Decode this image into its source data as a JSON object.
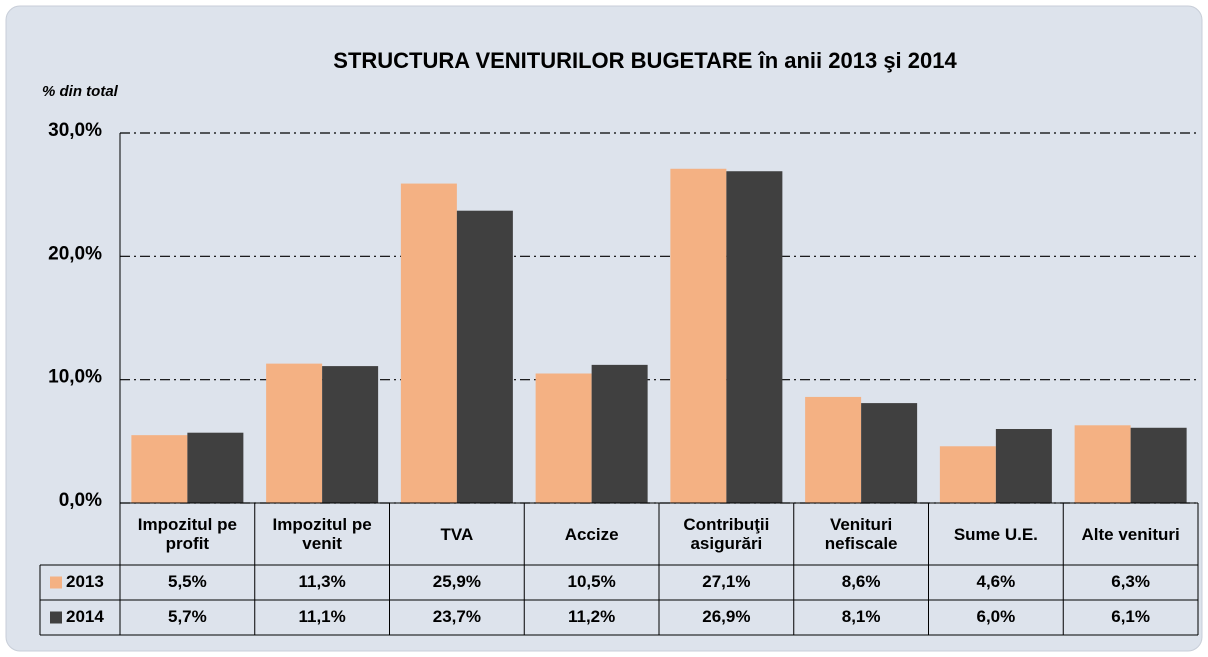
{
  "chart_data": {
    "type": "bar",
    "title": "STRUCTURA VENITURILOR BUGETARE în anii 2013 şi 2014",
    "y_axis_label": "% din total",
    "categories": [
      "Impozitul pe profit",
      "Impozitul pe venit",
      "TVA",
      "Accize",
      "Contribuţii asigurări",
      "Venituri nefiscale",
      "Sume U.E.",
      "Alte venituri"
    ],
    "series": [
      {
        "name": "2013",
        "color": "#f4b183",
        "values": [
          5.5,
          11.3,
          25.9,
          10.5,
          27.1,
          8.6,
          4.6,
          6.3
        ],
        "value_labels": [
          "5,5%",
          "11,3%",
          "25,9%",
          "10,5%",
          "27,1%",
          "8,6%",
          "4,6%",
          "6,3%"
        ]
      },
      {
        "name": "2014",
        "color": "#404040",
        "values": [
          5.7,
          11.1,
          23.7,
          11.2,
          26.9,
          8.1,
          6.0,
          6.1
        ],
        "value_labels": [
          "5,7%",
          "11,1%",
          "23,7%",
          "11,2%",
          "26,9%",
          "8,1%",
          "6,0%",
          "6,1%"
        ]
      }
    ],
    "ylim": [
      0,
      30
    ],
    "yticks": [
      {
        "value": 0,
        "label": "0,0%"
      },
      {
        "value": 10,
        "label": "10,0%"
      },
      {
        "value": 20,
        "label": "20,0%"
      },
      {
        "value": 30,
        "label": "30,0%"
      }
    ],
    "grid": true
  }
}
